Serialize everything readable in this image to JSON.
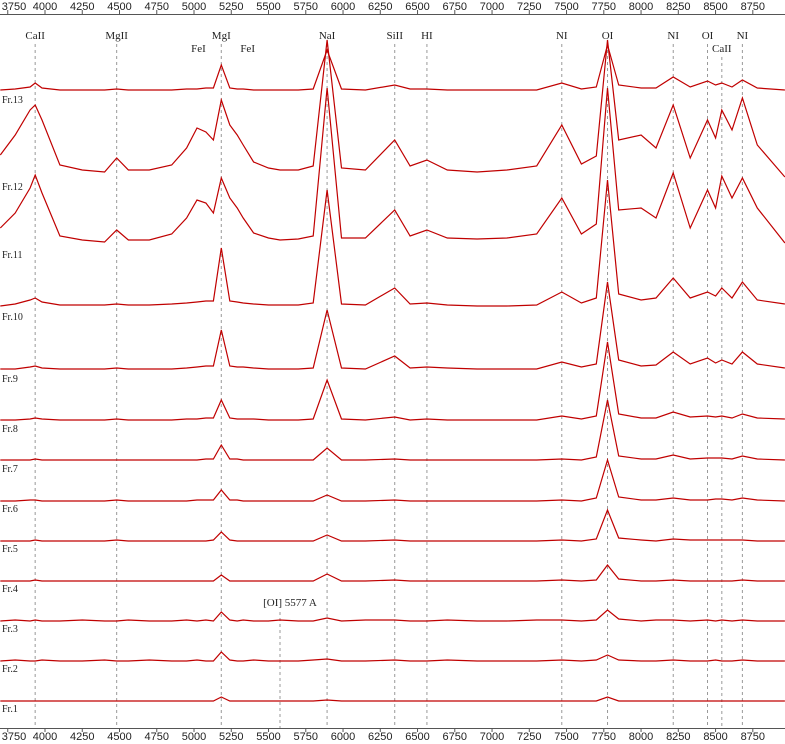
{
  "chart_data": {
    "type": "line",
    "color": "#c00000",
    "xlim": [
      3698,
      8966
    ],
    "xticks": [
      3750,
      4000,
      4250,
      4500,
      4750,
      5000,
      5250,
      5500,
      5750,
      6000,
      6250,
      6500,
      6750,
      7000,
      7250,
      7500,
      7750,
      8000,
      8250,
      8500,
      8750
    ],
    "annotations": [
      {
        "text": "CaII",
        "x": 3934,
        "dashed": true
      },
      {
        "text": "MgII",
        "x": 4481,
        "dashed": true
      },
      {
        "text": "FeI",
        "x": 5030,
        "dashed": false
      },
      {
        "text": "MgI",
        "x": 5183,
        "dashed": true
      },
      {
        "text": "FeI",
        "x": 5360,
        "dashed": false
      },
      {
        "text": "NaI",
        "x": 5893,
        "dashed": true
      },
      {
        "text": "SiII",
        "x": 6347,
        "dashed": true
      },
      {
        "text": "HI",
        "x": 6563,
        "dashed": true
      },
      {
        "text": "NI",
        "x": 7468,
        "dashed": true
      },
      {
        "text": "OI",
        "x": 7775,
        "dashed": true
      },
      {
        "text": "NI",
        "x": 8216,
        "dashed": true
      },
      {
        "text": "OI",
        "x": 8446,
        "dashed": true
      },
      {
        "text": "CaII",
        "x": 8542,
        "dashed": true
      },
      {
        "text": "NI",
        "x": 8680,
        "dashed": true
      }
    ],
    "note": {
      "text": "[OI] 5577 A",
      "x": 5577
    },
    "x": [
      3700,
      3800,
      3900,
      3934,
      3980,
      4100,
      4250,
      4400,
      4481,
      4560,
      4700,
      4850,
      4950,
      5020,
      5080,
      5130,
      5183,
      5240,
      5290,
      5330,
      5400,
      5500,
      5577,
      5700,
      5800,
      5893,
      5990,
      6150,
      6347,
      6450,
      6563,
      6700,
      6900,
      7100,
      7300,
      7468,
      7600,
      7700,
      7775,
      7850,
      8000,
      8100,
      8216,
      8330,
      8446,
      8500,
      8542,
      8610,
      8680,
      8780,
      8965
    ],
    "series": [
      {
        "name": "Fr.1",
        "values": [
          1,
          1,
          1,
          1,
          1,
          1,
          1,
          1,
          1,
          1,
          1,
          1,
          1,
          1,
          1,
          1,
          5,
          1,
          1,
          1,
          1,
          1,
          1,
          1,
          1,
          2,
          1,
          1,
          1,
          1,
          1,
          1,
          1,
          1,
          1,
          1,
          1,
          1,
          5,
          1,
          1,
          1,
          1,
          1,
          1,
          1,
          1,
          1,
          1,
          1,
          1
        ]
      },
      {
        "name": "Fr.2",
        "values": [
          1,
          2,
          1,
          1,
          2,
          1,
          1,
          2,
          1,
          1,
          2,
          1,
          1,
          2,
          1,
          1,
          10,
          2,
          1,
          1,
          2,
          1,
          1,
          1,
          2,
          3,
          1,
          1,
          2,
          1,
          1,
          2,
          1,
          1,
          1,
          2,
          1,
          2,
          7,
          2,
          1,
          1,
          2,
          1,
          1,
          2,
          1,
          1,
          2,
          1,
          1
        ]
      },
      {
        "name": "Fr.3",
        "values": [
          1,
          2,
          1,
          2,
          1,
          1,
          2,
          1,
          1,
          2,
          1,
          1,
          2,
          1,
          2,
          1,
          10,
          2,
          1,
          2,
          1,
          1,
          2,
          1,
          1,
          4,
          1,
          2,
          2,
          1,
          1,
          2,
          1,
          1,
          2,
          2,
          1,
          2,
          12,
          3,
          1,
          2,
          2,
          1,
          2,
          1,
          2,
          1,
          2,
          1,
          1
        ]
      },
      {
        "name": "Fr.4",
        "values": [
          1,
          1,
          1,
          2,
          1,
          1,
          1,
          1,
          1,
          1,
          1,
          1,
          1,
          1,
          1,
          1,
          7,
          1,
          1,
          1,
          1,
          1,
          1,
          1,
          1,
          8,
          1,
          1,
          2,
          1,
          1,
          1,
          1,
          1,
          1,
          2,
          1,
          2,
          17,
          3,
          1,
          1,
          2,
          1,
          1,
          1,
          1,
          1,
          2,
          1,
          1
        ]
      },
      {
        "name": "Fr.5",
        "values": [
          1,
          1,
          1,
          2,
          1,
          1,
          1,
          1,
          2,
          1,
          1,
          1,
          1,
          1,
          1,
          2,
          10,
          2,
          1,
          1,
          1,
          1,
          1,
          1,
          1,
          7,
          1,
          1,
          2,
          1,
          1,
          1,
          1,
          1,
          1,
          2,
          1,
          3,
          32,
          4,
          2,
          1,
          3,
          2,
          2,
          2,
          2,
          2,
          2,
          1,
          1
        ]
      },
      {
        "name": "Fr.6",
        "values": [
          1,
          1,
          2,
          2,
          1,
          1,
          1,
          1,
          2,
          1,
          1,
          1,
          1,
          2,
          2,
          2,
          12,
          2,
          2,
          1,
          1,
          1,
          1,
          1,
          1,
          7,
          1,
          1,
          2,
          1,
          1,
          1,
          1,
          1,
          1,
          2,
          1,
          4,
          42,
          5,
          2,
          2,
          4,
          2,
          2,
          3,
          3,
          2,
          4,
          2,
          1
        ]
      },
      {
        "name": "Fr.7",
        "values": [
          2,
          2,
          2,
          3,
          2,
          2,
          2,
          2,
          2,
          2,
          2,
          2,
          2,
          2,
          3,
          3,
          17,
          3,
          3,
          2,
          2,
          2,
          2,
          2,
          2,
          14,
          2,
          2,
          3,
          2,
          2,
          2,
          2,
          2,
          2,
          3,
          2,
          5,
          62,
          6,
          3,
          3,
          7,
          3,
          4,
          4,
          4,
          3,
          6,
          3,
          2
        ]
      },
      {
        "name": "Fr.8",
        "values": [
          2,
          2,
          3,
          4,
          3,
          2,
          2,
          2,
          3,
          2,
          2,
          2,
          3,
          3,
          4,
          4,
          22,
          4,
          3,
          3,
          3,
          2,
          2,
          2,
          3,
          42,
          3,
          2,
          5,
          2,
          3,
          2,
          2,
          2,
          2,
          6,
          3,
          6,
          80,
          8,
          4,
          4,
          10,
          5,
          6,
          5,
          6,
          4,
          8,
          4,
          3
        ]
      },
      {
        "name": "Fr.9",
        "values": [
          3,
          3,
          5,
          6,
          4,
          3,
          3,
          3,
          4,
          3,
          3,
          3,
          4,
          5,
          6,
          6,
          42,
          6,
          5,
          5,
          4,
          3,
          3,
          3,
          4,
          62,
          4,
          3,
          16,
          4,
          5,
          4,
          3,
          3,
          3,
          10,
          5,
          8,
          90,
          12,
          6,
          7,
          20,
          8,
          14,
          9,
          12,
          8,
          20,
          8,
          4
        ]
      },
      {
        "name": "Fr.10",
        "values": [
          4,
          6,
          10,
          12,
          8,
          5,
          5,
          5,
          6,
          5,
          5,
          6,
          7,
          8,
          9,
          9,
          62,
          9,
          8,
          7,
          6,
          5,
          5,
          5,
          7,
          120,
          6,
          5,
          22,
          6,
          7,
          5,
          4,
          4,
          5,
          18,
          7,
          12,
          130,
          16,
          10,
          12,
          32,
          12,
          18,
          14,
          22,
          12,
          28,
          10,
          6
        ]
      },
      {
        "name": "Fr.11",
        "values": [
          20,
          35,
          60,
          73,
          55,
          12,
          8,
          6,
          18,
          8,
          8,
          14,
          30,
          48,
          45,
          35,
          70,
          50,
          40,
          30,
          15,
          10,
          8,
          9,
          12,
          160,
          10,
          10,
          38,
          12,
          18,
          10,
          9,
          10,
          14,
          50,
          14,
          24,
          160,
          38,
          40,
          30,
          75,
          20,
          58,
          40,
          72,
          50,
          70,
          40,
          5
        ]
      },
      {
        "name": "Fr.12",
        "values": [
          25,
          45,
          70,
          75,
          60,
          15,
          10,
          8,
          22,
          10,
          10,
          15,
          32,
          52,
          48,
          40,
          80,
          55,
          45,
          35,
          18,
          12,
          10,
          10,
          14,
          140,
          12,
          10,
          40,
          14,
          20,
          10,
          8,
          10,
          14,
          55,
          16,
          24,
          140,
          40,
          45,
          32,
          75,
          22,
          60,
          42,
          70,
          50,
          82,
          35,
          3
        ]
      },
      {
        "name": "Fr.13",
        "values": [
          3,
          4,
          6,
          10,
          5,
          3,
          3,
          3,
          4,
          3,
          3,
          3,
          4,
          4,
          5,
          5,
          28,
          5,
          4,
          4,
          3,
          3,
          3,
          3,
          4,
          43,
          4,
          3,
          8,
          4,
          4,
          3,
          3,
          3,
          3,
          10,
          4,
          6,
          48,
          8,
          5,
          5,
          16,
          6,
          12,
          8,
          10,
          6,
          13,
          5,
          3
        ]
      }
    ]
  }
}
